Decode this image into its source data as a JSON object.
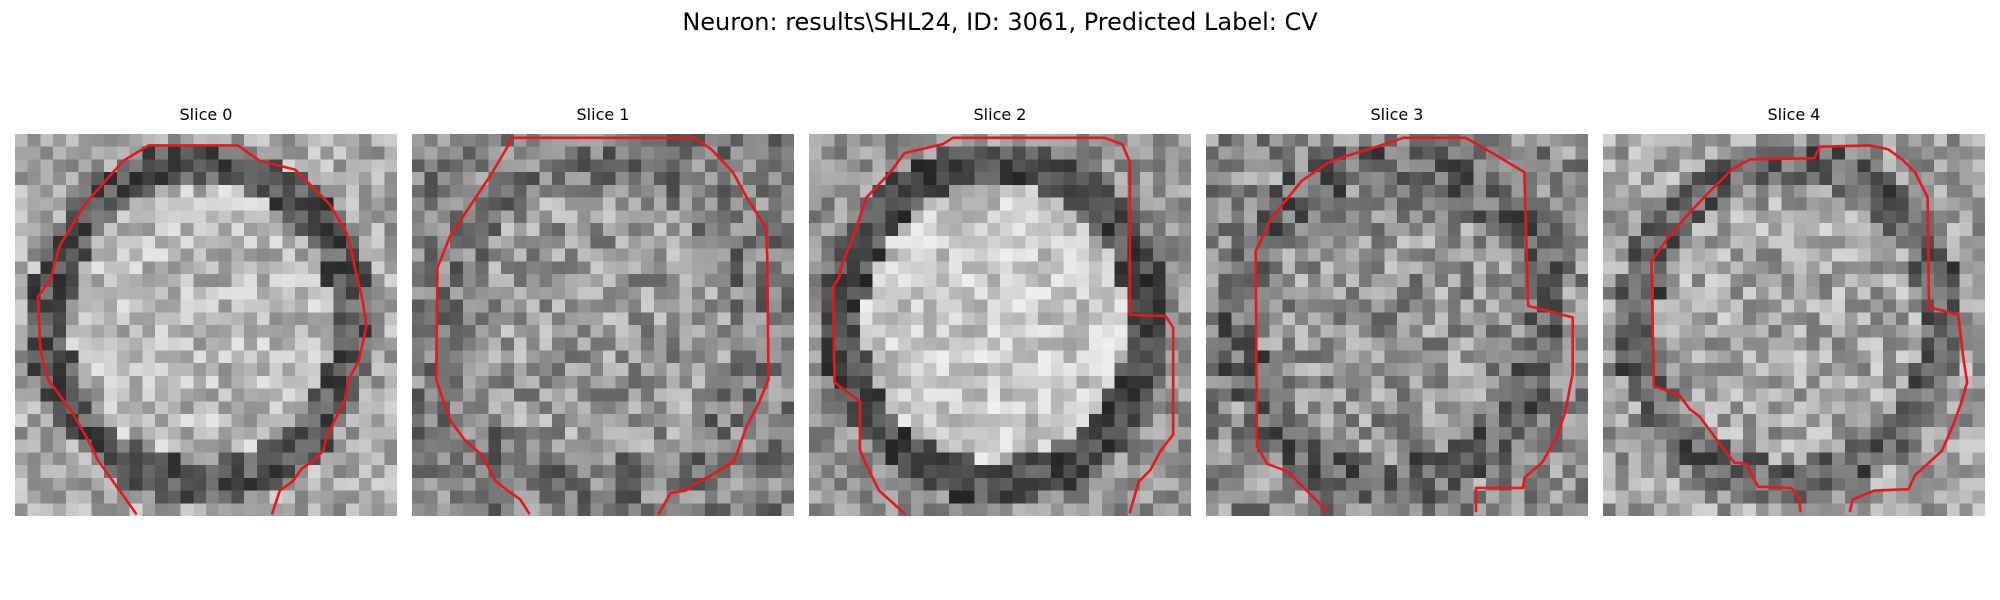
{
  "title": "Neuron: results\\SHL24, ID: 3061, Predicted Label: CV",
  "colors": {
    "contour": "#e8171b",
    "background": "#ffffff"
  },
  "panels": [
    {
      "label": "Slice 0",
      "profile": {
        "ring_dark": 0.34,
        "inner_bright": 0.72,
        "outer": 0.66,
        "noise": 0.36
      },
      "contour": [
        [
          9.5,
          29.8
        ],
        [
          6.5,
          25.6
        ],
        [
          6.0,
          24.5
        ],
        [
          5.2,
          23.1
        ],
        [
          4.4,
          21.7
        ],
        [
          2.6,
          19.3
        ],
        [
          2.0,
          17.0
        ],
        [
          1.8,
          12.8
        ],
        [
          2.8,
          11.4
        ],
        [
          3.5,
          8.8
        ],
        [
          5.5,
          5.5
        ],
        [
          8.5,
          2.1
        ],
        [
          10.5,
          0.9
        ],
        [
          17.5,
          0.9
        ],
        [
          19.2,
          2.1
        ],
        [
          22.0,
          2.8
        ],
        [
          24.7,
          5.5
        ],
        [
          26.0,
          7.7
        ],
        [
          26.5,
          9.5
        ],
        [
          26.7,
          10.5
        ],
        [
          27.3,
          13.1
        ],
        [
          27.6,
          15.1
        ],
        [
          27.0,
          17.8
        ],
        [
          26.2,
          19.3
        ],
        [
          25.9,
          20.9
        ],
        [
          24.5,
          23.7
        ],
        [
          24.2,
          24.9
        ],
        [
          23.5,
          25.6
        ],
        [
          22.5,
          26.3
        ],
        [
          21.8,
          27.3
        ],
        [
          20.8,
          28.0
        ],
        [
          20.2,
          29.8
        ]
      ]
    },
    {
      "label": "Slice 1",
      "profile": {
        "ring_dark": 0.48,
        "inner_bright": 0.6,
        "outer": 0.5,
        "noise": 0.42
      },
      "contour": [
        [
          9.2,
          29.8
        ],
        [
          8.5,
          28.7
        ],
        [
          7.5,
          28.0
        ],
        [
          6.5,
          27.2
        ],
        [
          5.5,
          25.2
        ],
        [
          4.2,
          24.1
        ],
        [
          3.0,
          22.5
        ],
        [
          1.9,
          19.3
        ],
        [
          2.0,
          10.5
        ],
        [
          3.0,
          8.0
        ],
        [
          4.8,
          5.3
        ],
        [
          6.2,
          3.2
        ],
        [
          7.5,
          1.0
        ],
        [
          7.8,
          0.3
        ],
        [
          22.2,
          0.3
        ],
        [
          23.5,
          1.2
        ],
        [
          25.2,
          3.0
        ],
        [
          26.3,
          5.0
        ],
        [
          27.8,
          7.4
        ],
        [
          27.9,
          9.6
        ],
        [
          28.0,
          19.3
        ],
        [
          27.2,
          21.2
        ],
        [
          26.3,
          22.9
        ],
        [
          25.3,
          25.7
        ],
        [
          23.5,
          26.8
        ],
        [
          22.2,
          27.5
        ],
        [
          21.5,
          28.0
        ],
        [
          20.3,
          28.2
        ],
        [
          19.4,
          29.8
        ]
      ]
    },
    {
      "label": "Slice 2",
      "profile": {
        "ring_dark": 0.3,
        "inner_bright": 0.78,
        "outer": 0.58,
        "noise": 0.32
      },
      "contour": [
        [
          7.5,
          29.8
        ],
        [
          5.5,
          28.0
        ],
        [
          4.5,
          26.0
        ],
        [
          4.0,
          24.8
        ],
        [
          4.0,
          21.0
        ],
        [
          2.0,
          19.5
        ],
        [
          1.9,
          12.0
        ],
        [
          2.4,
          11.2
        ],
        [
          2.5,
          10.5
        ],
        [
          3.5,
          8.0
        ],
        [
          4.5,
          5.0
        ],
        [
          6.4,
          3.0
        ],
        [
          7.5,
          1.5
        ],
        [
          10.5,
          0.8
        ],
        [
          11.3,
          0.3
        ],
        [
          23.2,
          0.3
        ],
        [
          24.6,
          0.8
        ],
        [
          25.2,
          2.2
        ],
        [
          25.2,
          14.2
        ],
        [
          28.0,
          14.3
        ],
        [
          28.6,
          15.2
        ],
        [
          28.6,
          23.6
        ],
        [
          27.6,
          24.9
        ],
        [
          26.8,
          26.4
        ],
        [
          25.9,
          27.3
        ],
        [
          25.2,
          29.7
        ]
      ]
    },
    {
      "label": "Slice 3",
      "profile": {
        "ring_dark": 0.4,
        "inner_bright": 0.58,
        "outer": 0.55,
        "noise": 0.44
      },
      "contour": [
        [
          9.5,
          29.6
        ],
        [
          7.6,
          27.7
        ],
        [
          6.4,
          26.5
        ],
        [
          4.8,
          25.9
        ],
        [
          4.0,
          24.5
        ],
        [
          3.9,
          9.2
        ],
        [
          4.3,
          8.4
        ],
        [
          5.0,
          6.8
        ],
        [
          7.5,
          3.7
        ],
        [
          9.5,
          2.3
        ],
        [
          10.8,
          1.8
        ],
        [
          13.4,
          1.0
        ],
        [
          15.5,
          0.3
        ],
        [
          20.4,
          0.3
        ],
        [
          22.5,
          1.5
        ],
        [
          25.0,
          3.0
        ],
        [
          25.3,
          13.5
        ],
        [
          28.8,
          14.4
        ],
        [
          28.8,
          18.8
        ],
        [
          28.2,
          21.9
        ],
        [
          27.5,
          23.9
        ],
        [
          26.4,
          25.8
        ],
        [
          25.0,
          27.0
        ],
        [
          24.9,
          27.8
        ],
        [
          21.2,
          27.8
        ],
        [
          21.2,
          29.6
        ]
      ]
    },
    {
      "label": "Slice 4",
      "profile": {
        "ring_dark": 0.38,
        "inner_bright": 0.65,
        "outer": 0.63,
        "noise": 0.4
      },
      "contour": [
        [
          15.5,
          29.6
        ],
        [
          15.4,
          28.6
        ],
        [
          14.8,
          27.8
        ],
        [
          12.2,
          27.7
        ],
        [
          11.6,
          26.7
        ],
        [
          11.3,
          25.9
        ],
        [
          10.3,
          25.8
        ],
        [
          9.0,
          24.1
        ],
        [
          7.6,
          22.2
        ],
        [
          6.8,
          21.6
        ],
        [
          6.0,
          20.5
        ],
        [
          4.0,
          19.8
        ],
        [
          3.8,
          10.0
        ],
        [
          5.0,
          8.3
        ],
        [
          6.6,
          6.4
        ],
        [
          8.0,
          4.9
        ],
        [
          10.1,
          2.8
        ],
        [
          11.5,
          2.0
        ],
        [
          16.6,
          1.9
        ],
        [
          17.0,
          1.0
        ],
        [
          21.0,
          0.9
        ],
        [
          22.4,
          1.2
        ],
        [
          23.5,
          2.0
        ],
        [
          24.5,
          3.0
        ],
        [
          25.5,
          5.0
        ],
        [
          25.6,
          13.6
        ],
        [
          27.9,
          14.2
        ],
        [
          28.3,
          17.6
        ],
        [
          28.6,
          19.5
        ],
        [
          28.1,
          21.2
        ],
        [
          27.6,
          22.6
        ],
        [
          27.1,
          23.8
        ],
        [
          26.6,
          24.9
        ],
        [
          24.5,
          26.8
        ],
        [
          24.0,
          27.9
        ],
        [
          21.3,
          28.0
        ],
        [
          19.6,
          28.7
        ],
        [
          19.4,
          29.6
        ]
      ]
    }
  ]
}
